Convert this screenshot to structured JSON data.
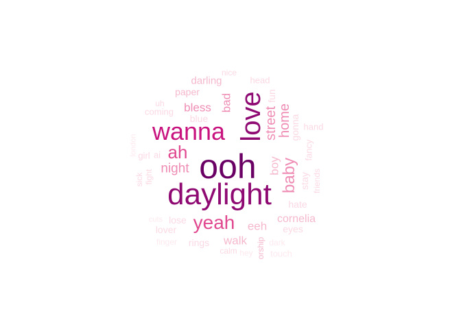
{
  "palette": {
    "darkest": "#6a0064",
    "dark": "#8e0a72",
    "strong": "#c8137f",
    "medium": "#e0488f",
    "light": "#ef8cb4",
    "pale": "#f5b8cd",
    "faint": "#fbd9e3",
    "ghost": "#fde9ee"
  },
  "words": {
    "ooh": "ooh",
    "daylight": "daylight",
    "love": "love",
    "wanna": "wanna",
    "yeah": "yeah",
    "ah": "ah",
    "baby": "baby",
    "street": "street",
    "home": "home",
    "night": "night",
    "bless": "bless",
    "bad": "bad",
    "boy": "boy",
    "walk": "walk",
    "eeh": "eeh",
    "cornelia": "cornelia",
    "darling": "darling",
    "paper": "paper",
    "blue": "blue",
    "coming": "coming",
    "uh": "uh",
    "nice": "nice",
    "head": "head",
    "fun": "fun",
    "gonna": "gonna",
    "hand": "hand",
    "fancy": "fancy",
    "stay": "stay",
    "friends": "friends",
    "hate": "hate",
    "eyes": "eyes",
    "lose": "lose",
    "lover": "lover",
    "rings": "rings",
    "calm": "calm",
    "london": "london",
    "girl": "girl",
    "ai": "ai",
    "sick": "sick",
    "fight": "fight",
    "cuts": "cuts",
    "finger": "finger",
    "worship": "orship",
    "dark": "dark",
    "touch": "touch",
    "hey": "hey"
  }
}
